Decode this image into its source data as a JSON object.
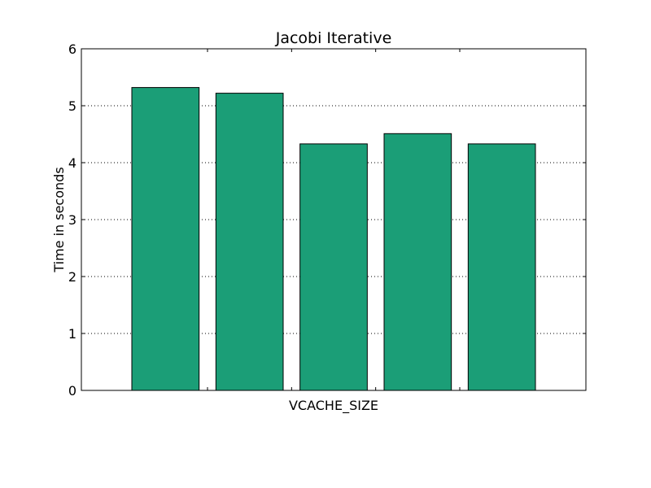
{
  "chart_data": {
    "type": "bar",
    "title": "Jacobi Iterative",
    "xlabel": "VCACHE_SIZE",
    "ylabel": "Time in seconds",
    "ylim": [
      0,
      6
    ],
    "yticks": [
      0,
      1,
      2,
      3,
      4,
      5,
      6
    ],
    "categories": [
      "",
      "",
      "",
      "",
      ""
    ],
    "values": [
      5.32,
      5.22,
      4.33,
      4.51,
      4.33
    ],
    "grid": "y-dotted",
    "colors": {
      "bar": "#1b9e77",
      "edge": "#000000",
      "grid": "#000000"
    }
  }
}
